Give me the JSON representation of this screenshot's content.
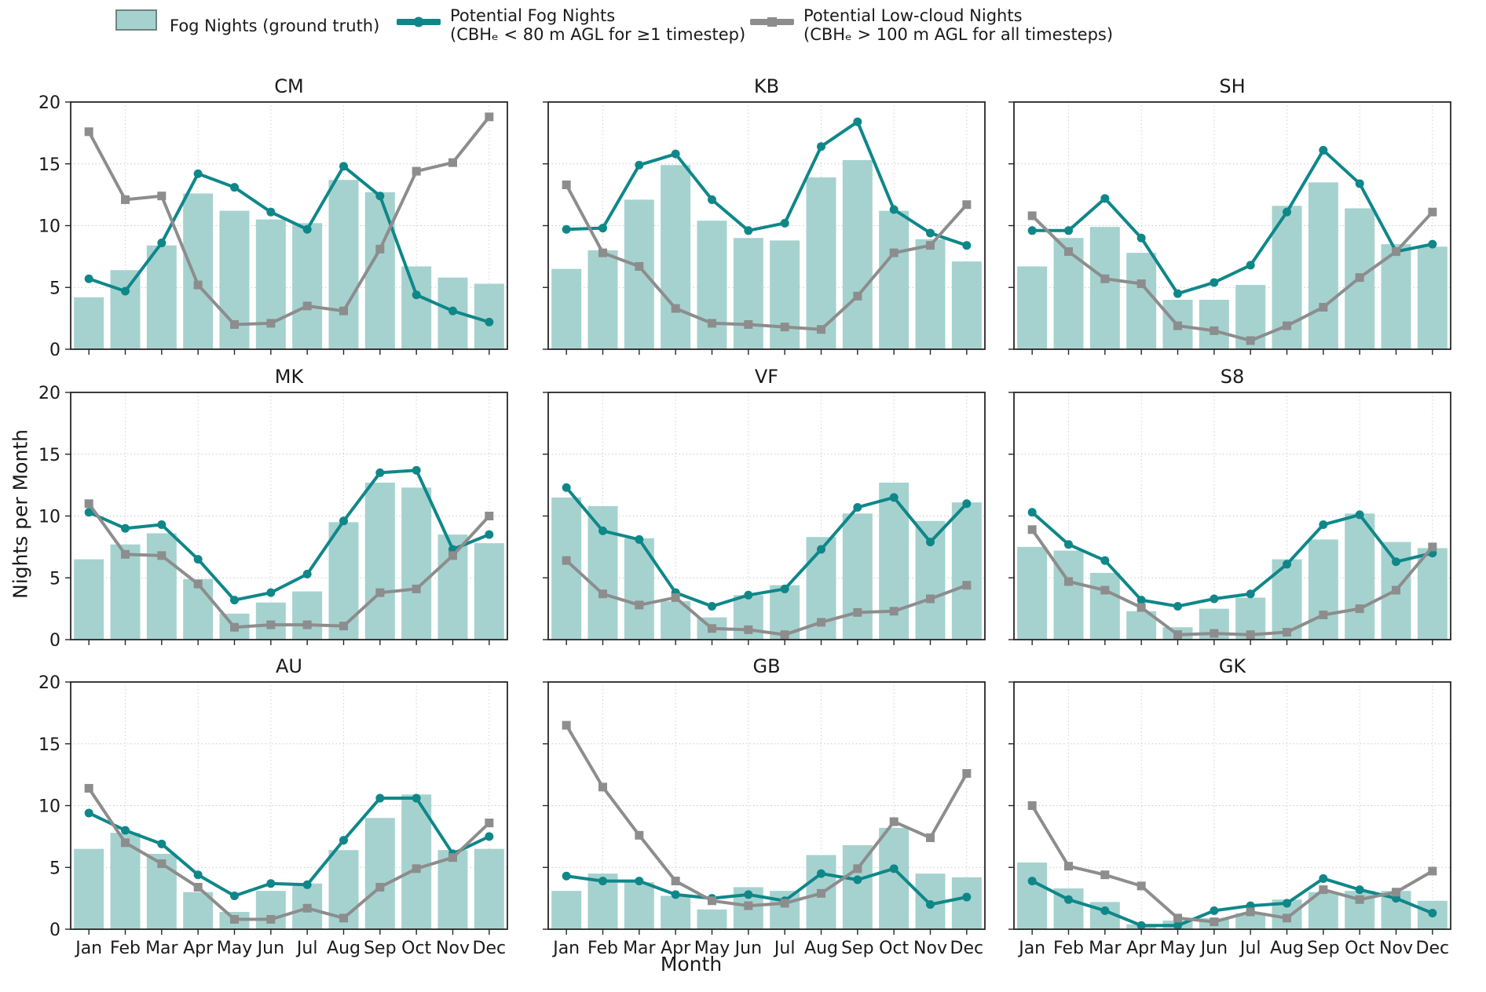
{
  "colors": {
    "bar_fill": "#a5d2cf",
    "bar_edge": "#6e8583",
    "fog_line": "#0f8789",
    "lowcloud_line": "#8d8d8d",
    "grid": "#c9c9c9",
    "grid_vertical": "#d6d6d6",
    "spine": "#262626"
  },
  "legend": {
    "bar": {
      "label": "Fog Nights (ground truth)"
    },
    "fog": {
      "line1": "Potential Fog Nights",
      "line2": "(CBHₑ < 80 m AGL for ≥1 timestep)"
    },
    "lowcloud": {
      "line1": "Potential Low-cloud Nights",
      "line2": "(CBHₑ > 100 m AGL for all timesteps)"
    }
  },
  "axes": {
    "ylabel": "Nights per Month",
    "xlabel": "Month",
    "yticks": [
      0,
      5,
      10,
      15,
      20
    ],
    "ylim": [
      0,
      20
    ],
    "months": [
      "Jan",
      "Feb",
      "Mar",
      "Apr",
      "May",
      "Jun",
      "Jul",
      "Aug",
      "Sep",
      "Oct",
      "Nov",
      "Dec"
    ]
  },
  "chart_data": [
    {
      "type": "bar",
      "title": "CM",
      "ylim": [
        0,
        20
      ],
      "categories": [
        "Jan",
        "Feb",
        "Mar",
        "Apr",
        "May",
        "Jun",
        "Jul",
        "Aug",
        "Sep",
        "Oct",
        "Nov",
        "Dec"
      ],
      "series": [
        {
          "name": "Fog Nights (ground truth)",
          "type": "bar",
          "values": [
            4.2,
            6.4,
            8.4,
            12.6,
            11.2,
            10.5,
            10.2,
            13.7,
            12.7,
            6.7,
            5.8,
            5.3
          ]
        },
        {
          "name": "Potential Fog Nights",
          "type": "line",
          "marker": "circle",
          "values": [
            5.7,
            4.7,
            8.6,
            14.2,
            13.1,
            11.1,
            9.7,
            14.8,
            12.4,
            4.4,
            3.1,
            2.2
          ]
        },
        {
          "name": "Potential Low-cloud Nights",
          "type": "line",
          "marker": "square",
          "values": [
            17.6,
            12.1,
            12.4,
            5.2,
            2.0,
            2.1,
            3.5,
            3.1,
            8.1,
            14.4,
            15.1,
            18.8
          ]
        }
      ]
    },
    {
      "type": "bar",
      "title": "KB",
      "ylim": [
        0,
        20
      ],
      "categories": [
        "Jan",
        "Feb",
        "Mar",
        "Apr",
        "May",
        "Jun",
        "Jul",
        "Aug",
        "Sep",
        "Oct",
        "Nov",
        "Dec"
      ],
      "series": [
        {
          "name": "Fog Nights (ground truth)",
          "type": "bar",
          "values": [
            6.5,
            8.0,
            12.1,
            14.9,
            10.4,
            9.0,
            8.8,
            13.9,
            15.3,
            11.2,
            8.9,
            7.1
          ]
        },
        {
          "name": "Potential Fog Nights",
          "type": "line",
          "marker": "circle",
          "values": [
            9.7,
            9.8,
            14.9,
            15.8,
            12.1,
            9.6,
            10.2,
            16.4,
            18.4,
            11.3,
            9.4,
            8.4
          ]
        },
        {
          "name": "Potential Low-cloud Nights",
          "type": "line",
          "marker": "square",
          "values": [
            13.3,
            7.8,
            6.7,
            3.3,
            2.1,
            2.0,
            1.8,
            1.6,
            4.3,
            7.8,
            8.4,
            11.7
          ]
        }
      ]
    },
    {
      "type": "bar",
      "title": "SH",
      "ylim": [
        0,
        20
      ],
      "categories": [
        "Jan",
        "Feb",
        "Mar",
        "Apr",
        "May",
        "Jun",
        "Jul",
        "Aug",
        "Sep",
        "Oct",
        "Nov",
        "Dec"
      ],
      "series": [
        {
          "name": "Fog Nights (ground truth)",
          "type": "bar",
          "values": [
            6.7,
            9.0,
            9.9,
            7.8,
            4.0,
            4.0,
            5.2,
            11.6,
            13.5,
            11.4,
            8.5,
            8.3
          ]
        },
        {
          "name": "Potential Fog Nights",
          "type": "line",
          "marker": "circle",
          "values": [
            9.6,
            9.6,
            12.2,
            9.0,
            4.5,
            5.4,
            6.8,
            11.1,
            16.1,
            13.4,
            7.9,
            8.5
          ]
        },
        {
          "name": "Potential Low-cloud Nights",
          "type": "line",
          "marker": "square",
          "values": [
            10.8,
            7.9,
            5.7,
            5.3,
            1.9,
            1.5,
            0.7,
            1.9,
            3.4,
            5.8,
            7.9,
            11.1
          ]
        }
      ]
    },
    {
      "type": "bar",
      "title": "MK",
      "ylim": [
        0,
        20
      ],
      "categories": [
        "Jan",
        "Feb",
        "Mar",
        "Apr",
        "May",
        "Jun",
        "Jul",
        "Aug",
        "Sep",
        "Oct",
        "Nov",
        "Dec"
      ],
      "series": [
        {
          "name": "Fog Nights (ground truth)",
          "type": "bar",
          "values": [
            6.5,
            7.7,
            8.6,
            4.9,
            2.1,
            3.0,
            3.9,
            9.5,
            12.7,
            12.3,
            8.5,
            7.8
          ]
        },
        {
          "name": "Potential Fog Nights",
          "type": "line",
          "marker": "circle",
          "values": [
            10.3,
            9.0,
            9.3,
            6.5,
            3.2,
            3.8,
            5.3,
            9.6,
            13.5,
            13.7,
            7.3,
            8.5
          ]
        },
        {
          "name": "Potential Low-cloud Nights",
          "type": "line",
          "marker": "square",
          "values": [
            11.0,
            6.9,
            6.8,
            4.5,
            1.0,
            1.2,
            1.2,
            1.1,
            3.8,
            4.1,
            6.8,
            10.0
          ]
        }
      ]
    },
    {
      "type": "bar",
      "title": "VF",
      "ylim": [
        0,
        20
      ],
      "categories": [
        "Jan",
        "Feb",
        "Mar",
        "Apr",
        "May",
        "Jun",
        "Jul",
        "Aug",
        "Sep",
        "Oct",
        "Nov",
        "Dec"
      ],
      "series": [
        {
          "name": "Fog Nights (ground truth)",
          "type": "bar",
          "values": [
            11.5,
            10.8,
            8.2,
            3.1,
            1.8,
            3.6,
            4.4,
            8.3,
            10.2,
            12.7,
            9.6,
            11.1
          ]
        },
        {
          "name": "Potential Fog Nights",
          "type": "line",
          "marker": "circle",
          "values": [
            12.3,
            8.8,
            8.1,
            3.8,
            2.7,
            3.6,
            4.1,
            7.3,
            10.7,
            11.5,
            7.9,
            11.0
          ]
        },
        {
          "name": "Potential Low-cloud Nights",
          "type": "line",
          "marker": "square",
          "values": [
            6.4,
            3.7,
            2.8,
            3.4,
            0.9,
            0.8,
            0.4,
            1.4,
            2.2,
            2.3,
            3.3,
            4.4
          ]
        }
      ]
    },
    {
      "type": "bar",
      "title": "S8",
      "ylim": [
        0,
        20
      ],
      "categories": [
        "Jan",
        "Feb",
        "Mar",
        "Apr",
        "May",
        "Jun",
        "Jul",
        "Aug",
        "Sep",
        "Oct",
        "Nov",
        "Dec"
      ],
      "series": [
        {
          "name": "Fog Nights (ground truth)",
          "type": "bar",
          "values": [
            7.5,
            7.2,
            5.4,
            2.3,
            1.0,
            2.5,
            3.4,
            6.5,
            8.1,
            10.2,
            7.9,
            7.4
          ]
        },
        {
          "name": "Potential Fog Nights",
          "type": "line",
          "marker": "circle",
          "values": [
            10.3,
            7.7,
            6.4,
            3.2,
            2.7,
            3.3,
            3.7,
            6.1,
            9.3,
            10.1,
            6.3,
            7.0
          ]
        },
        {
          "name": "Potential Low-cloud Nights",
          "type": "line",
          "marker": "square",
          "values": [
            8.9,
            4.7,
            4.0,
            2.6,
            0.4,
            0.5,
            0.4,
            0.6,
            2.0,
            2.5,
            4.0,
            7.5
          ]
        }
      ]
    },
    {
      "type": "bar",
      "title": "AU",
      "ylim": [
        0,
        20
      ],
      "categories": [
        "Jan",
        "Feb",
        "Mar",
        "Apr",
        "May",
        "Jun",
        "Jul",
        "Aug",
        "Sep",
        "Oct",
        "Nov",
        "Dec"
      ],
      "series": [
        {
          "name": "Fog Nights (ground truth)",
          "type": "bar",
          "values": [
            6.5,
            7.8,
            6.1,
            3.0,
            1.4,
            3.1,
            3.7,
            6.4,
            9.0,
            10.9,
            6.4,
            6.5
          ]
        },
        {
          "name": "Potential Fog Nights",
          "type": "line",
          "marker": "circle",
          "values": [
            9.4,
            8.0,
            6.9,
            4.4,
            2.7,
            3.7,
            3.6,
            7.2,
            10.6,
            10.6,
            6.1,
            7.5
          ]
        },
        {
          "name": "Potential Low-cloud Nights",
          "type": "line",
          "marker": "square",
          "values": [
            11.4,
            7.0,
            5.3,
            3.4,
            0.8,
            0.8,
            1.7,
            0.9,
            3.4,
            4.9,
            5.8,
            8.6
          ]
        }
      ]
    },
    {
      "type": "bar",
      "title": "GB",
      "ylim": [
        0,
        20
      ],
      "categories": [
        "Jan",
        "Feb",
        "Mar",
        "Apr",
        "May",
        "Jun",
        "Jul",
        "Aug",
        "Sep",
        "Oct",
        "Nov",
        "Dec"
      ],
      "series": [
        {
          "name": "Fog Nights (ground truth)",
          "type": "bar",
          "values": [
            3.1,
            4.5,
            3.8,
            2.7,
            1.6,
            3.4,
            3.1,
            6.0,
            6.8,
            8.2,
            4.5,
            4.2
          ]
        },
        {
          "name": "Potential Fog Nights",
          "type": "line",
          "marker": "circle",
          "values": [
            4.3,
            3.9,
            3.9,
            2.8,
            2.5,
            2.8,
            2.3,
            4.5,
            4.0,
            4.9,
            2.0,
            2.6
          ]
        },
        {
          "name": "Potential Low-cloud Nights",
          "type": "line",
          "marker": "square",
          "values": [
            16.5,
            11.5,
            7.6,
            3.9,
            2.3,
            1.9,
            2.1,
            2.9,
            4.9,
            8.7,
            7.4,
            12.6
          ]
        }
      ]
    },
    {
      "type": "bar",
      "title": "GK",
      "ylim": [
        0,
        20
      ],
      "categories": [
        "Jan",
        "Feb",
        "Mar",
        "Apr",
        "May",
        "Jun",
        "Jul",
        "Aug",
        "Sep",
        "Oct",
        "Nov",
        "Dec"
      ],
      "series": [
        {
          "name": "Fog Nights (ground truth)",
          "type": "bar",
          "values": [
            5.4,
            3.3,
            2.2,
            0.4,
            0.7,
            0.9,
            1.3,
            2.4,
            3.0,
            3.1,
            3.1,
            2.3
          ]
        },
        {
          "name": "Potential Fog Nights",
          "type": "line",
          "marker": "circle",
          "values": [
            3.9,
            2.4,
            1.5,
            0.3,
            0.3,
            1.5,
            1.9,
            2.1,
            4.1,
            3.2,
            2.5,
            1.3
          ]
        },
        {
          "name": "Potential Low-cloud Nights",
          "type": "line",
          "marker": "square",
          "values": [
            10.0,
            5.1,
            4.4,
            3.5,
            0.9,
            0.6,
            1.4,
            0.9,
            3.2,
            2.4,
            3.0,
            4.7
          ]
        }
      ]
    }
  ]
}
